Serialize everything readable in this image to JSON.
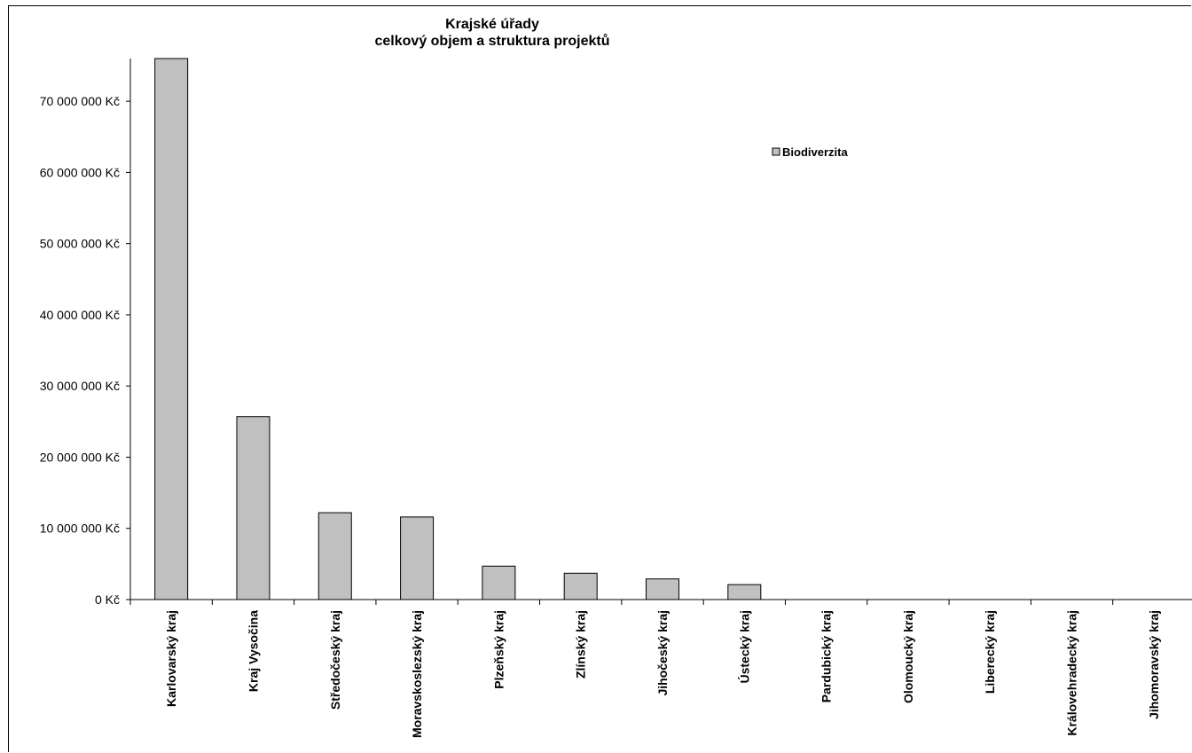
{
  "chart_data": {
    "type": "bar",
    "title": [
      "Krajské úřady",
      "celkový objem a struktura projektů"
    ],
    "categories": [
      "Karlovarský kraj",
      "Kraj Vysočina",
      "Středočeský kraj",
      "Moravskoslezský kraj",
      "Plzeňský kraj",
      "Zlínský kraj",
      "Jihočeský kraj",
      "Ústecký kraj",
      "Pardubický kraj",
      "Olomoucký kraj",
      "Liberecký kraj",
      "Královehradecký kraj",
      "Jihomoravský kraj"
    ],
    "series": [
      {
        "name": "Biodiverzita",
        "color": "#c0c0c0",
        "values": [
          76000000,
          25700000,
          12200000,
          11600000,
          4700000,
          3700000,
          2900000,
          2100000,
          0,
          0,
          0,
          0,
          0
        ]
      }
    ],
    "y_ticks": [
      0,
      10000000,
      20000000,
      30000000,
      40000000,
      50000000,
      60000000,
      70000000
    ],
    "y_tick_labels": [
      "0 Kč",
      "10 000 000 Kč",
      "20 000 000 Kč",
      "30 000 000 Kč",
      "40 000 000 Kč",
      "50 000 000 Kč",
      "60 000 000 Kč",
      "70 000 000 Kč"
    ],
    "ylim": [
      0,
      76000000
    ],
    "grid": false,
    "legend_position": "upper-right"
  }
}
